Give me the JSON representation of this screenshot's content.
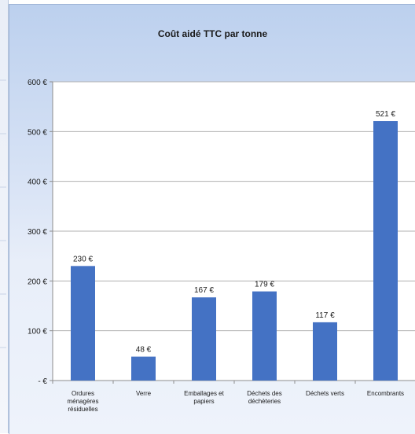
{
  "chart_data": {
    "type": "bar",
    "title": "Coût aidé TTC par tonne",
    "categories": [
      [
        "Ordures",
        "ménagères",
        "résiduelles"
      ],
      [
        "Verre"
      ],
      [
        "Emballages et",
        "papiers"
      ],
      [
        "Déchets des",
        "déchèteries"
      ],
      [
        "Déchets verts"
      ],
      [
        "Encombrants"
      ]
    ],
    "values": [
      230,
      48,
      167,
      179,
      117,
      521
    ],
    "value_labels": [
      "230 €",
      "48 €",
      "167 €",
      "179 €",
      "117 €",
      "521 €"
    ],
    "yticks": [
      0,
      100,
      200,
      300,
      400,
      500,
      600
    ],
    "ytick_labels": [
      "-  €",
      "100 €",
      "200 €",
      "300 €",
      "400 €",
      "500 €",
      "600 €"
    ],
    "ylim": [
      0,
      600
    ],
    "xlabel": "",
    "ylabel": "",
    "grid": true,
    "bar_color": "#4472c4"
  }
}
